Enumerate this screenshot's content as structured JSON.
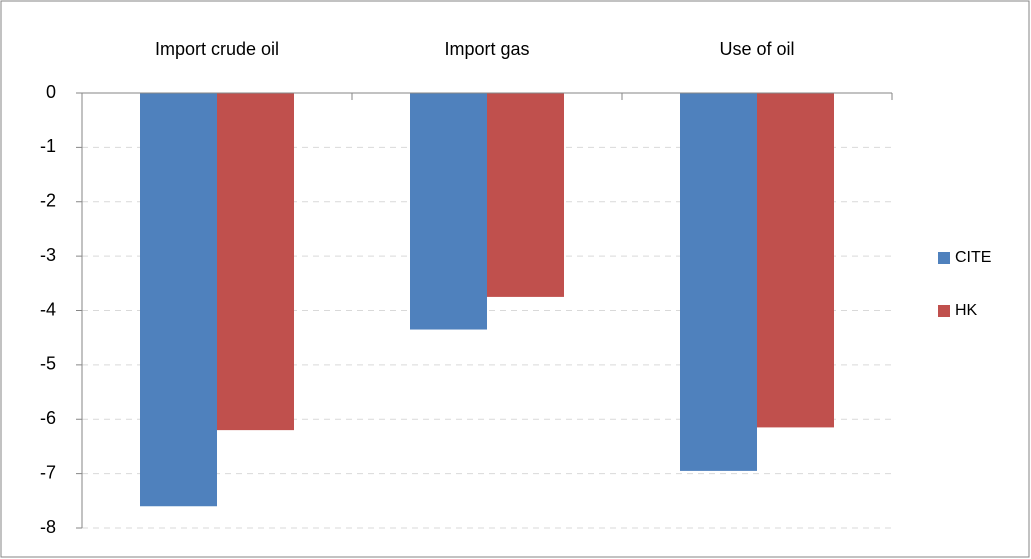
{
  "chart_data": {
    "type": "bar",
    "categories": [
      "Import crude oil",
      "Import gas",
      "Use of oil"
    ],
    "series": [
      {
        "name": "CITE",
        "color": "#4f81bd",
        "values": [
          -7.6,
          -4.35,
          -6.95
        ]
      },
      {
        "name": "HK",
        "color": "#c0504d",
        "values": [
          -6.2,
          -3.75,
          -6.15
        ]
      }
    ],
    "ylim": [
      -8,
      0
    ],
    "yticks": [
      0,
      -1,
      -2,
      -3,
      -4,
      -5,
      -6,
      -7,
      -8
    ],
    "grid": true,
    "legend": "right"
  }
}
